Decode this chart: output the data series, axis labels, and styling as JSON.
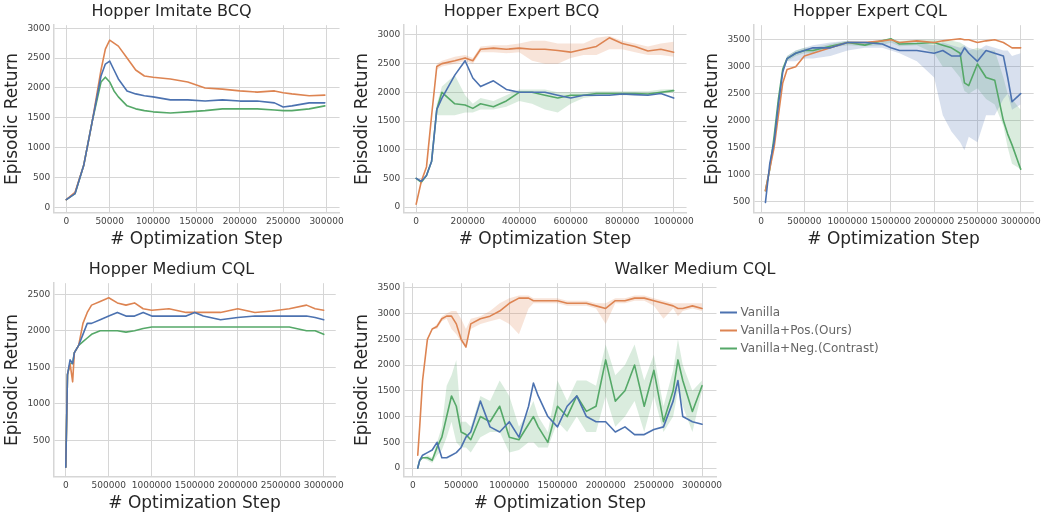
{
  "chart_data": [
    {
      "type": "line",
      "title": "Hopper Imitate BCQ",
      "xlabel": "# Optimization Step",
      "ylabel": "Episodic Return",
      "grid": true,
      "xlim": [
        -15000,
        315000
      ],
      "xticks": [
        0,
        50000,
        100000,
        150000,
        200000,
        250000,
        300000
      ],
      "ylim": [
        -90,
        3050
      ],
      "yticks": [
        0,
        500,
        1000,
        1500,
        2000,
        2500,
        3000
      ],
      "x": [
        0,
        10000,
        20000,
        30000,
        40000,
        45000,
        50000,
        55000,
        60000,
        70000,
        80000,
        90000,
        100000,
        120000,
        140000,
        160000,
        180000,
        200000,
        220000,
        240000,
        250000,
        260000,
        280000,
        298000
      ],
      "series": [
        {
          "color": "#4c72b0",
          "values": [
            130,
            230,
            700,
            1450,
            2200,
            2400,
            2450,
            2300,
            2150,
            1950,
            1900,
            1870,
            1850,
            1800,
            1800,
            1780,
            1800,
            1780,
            1780,
            1750,
            1680,
            1700,
            1750,
            1750
          ]
        },
        {
          "color": "#dd8452",
          "values": [
            130,
            250,
            700,
            1450,
            2300,
            2650,
            2800,
            2750,
            2700,
            2500,
            2300,
            2200,
            2180,
            2150,
            2100,
            2000,
            1980,
            1950,
            1930,
            1950,
            1920,
            1900,
            1870,
            1880
          ]
        },
        {
          "color": "#55a868",
          "values": [
            130,
            230,
            700,
            1450,
            2100,
            2180,
            2100,
            1950,
            1850,
            1700,
            1650,
            1620,
            1600,
            1580,
            1600,
            1620,
            1650,
            1650,
            1650,
            1630,
            1620,
            1620,
            1650,
            1700
          ]
        }
      ]
    },
    {
      "type": "line",
      "title": "Hopper Expert BCQ",
      "xlabel": "# Optimization Step",
      "ylabel": "Episodic Return",
      "grid": true,
      "xlim": [
        -50000,
        1050000
      ],
      "xticks": [
        0,
        200000,
        400000,
        600000,
        800000,
        1000000
      ],
      "ylim": [
        -100,
        3170
      ],
      "yticks": [
        0,
        500,
        1000,
        1500,
        2000,
        2500,
        3000
      ],
      "x": [
        0,
        20000,
        40000,
        60000,
        80000,
        100000,
        150000,
        190000,
        220000,
        250000,
        300000,
        350000,
        400000,
        450000,
        500000,
        550000,
        600000,
        650000,
        700000,
        750000,
        800000,
        850000,
        900000,
        950000,
        1000000
      ],
      "series": [
        {
          "color": "#4c72b0",
          "values": [
            500,
            450,
            550,
            800,
            1700,
            1900,
            2300,
            2550,
            2250,
            2100,
            2200,
            2050,
            2000,
            2000,
            2000,
            1950,
            1900,
            1950,
            1950,
            1950,
            1970,
            1960,
            1950,
            1980,
            1900
          ]
        },
        {
          "color": "#dd8452",
          "values": [
            50,
            450,
            700,
            1600,
            2450,
            2500,
            2550,
            2600,
            2550,
            2750,
            2770,
            2750,
            2770,
            2750,
            2750,
            2730,
            2700,
            2750,
            2800,
            2950,
            2850,
            2800,
            2720,
            2750,
            2700
          ],
          "lower": [
            50,
            450,
            700,
            1600,
            2400,
            2450,
            2500,
            2550,
            2500,
            2700,
            2700,
            2680,
            2700,
            2550,
            2500,
            2500,
            2600,
            2650,
            2650,
            2750,
            2750,
            2700,
            2650,
            2650,
            2620
          ],
          "upper": [
            50,
            450,
            700,
            1600,
            2500,
            2550,
            2620,
            2650,
            2600,
            2800,
            2820,
            2820,
            2850,
            2900,
            2900,
            2850,
            2850,
            2850,
            2950,
            2980,
            2900,
            2850,
            2800,
            2850,
            2880
          ]
        },
        {
          "color": "#55a868",
          "values": [
            500,
            430,
            550,
            800,
            1700,
            2000,
            1800,
            1780,
            1720,
            1800,
            1750,
            1850,
            2000,
            2000,
            1950,
            1900,
            1950,
            1950,
            1980,
            1980,
            1980,
            1980,
            1970,
            2000,
            2030
          ],
          "lower": [
            500,
            430,
            550,
            800,
            1600,
            1600,
            1600,
            1650,
            1650,
            1700,
            1700,
            1750,
            1850,
            1800,
            1700,
            1650,
            1800,
            1900,
            1930,
            1950,
            1950,
            1950,
            1950,
            1970,
            2000
          ],
          "upper": [
            500,
            430,
            550,
            800,
            1800,
            2100,
            2300,
            1950,
            1800,
            1900,
            1850,
            1950,
            2050,
            2050,
            2050,
            2000,
            2000,
            2000,
            2020,
            2020,
            2020,
            2020,
            2020,
            2050,
            2060
          ]
        }
      ]
    },
    {
      "type": "line",
      "title": "Hopper Expert CQL",
      "xlabel": "# Optimization Step",
      "ylabel": "Episodic Return",
      "grid": true,
      "xlim": [
        -90000,
        3150000
      ],
      "xticks": [
        0,
        500000,
        1000000,
        1500000,
        2000000,
        2500000,
        3000000
      ],
      "ylim": [
        290,
        3770
      ],
      "yticks": [
        500,
        1000,
        1500,
        2000,
        2500,
        3000,
        3500
      ],
      "x": [
        50000,
        100000,
        150000,
        200000,
        250000,
        300000,
        400000,
        500000,
        600000,
        800000,
        1000000,
        1200000,
        1400000,
        1500000,
        1600000,
        1800000,
        2000000,
        2100000,
        2200000,
        2300000,
        2350000,
        2400000,
        2500000,
        2600000,
        2700000,
        2800000,
        2850000,
        2900000,
        3000000
      ],
      "series": [
        {
          "color": "#4c72b0",
          "values": [
            480,
            1200,
            1600,
            2300,
            2900,
            3150,
            3250,
            3300,
            3350,
            3350,
            3450,
            3450,
            3420,
            3350,
            3300,
            3300,
            3250,
            3300,
            3200,
            3200,
            3350,
            3250,
            3100,
            3300,
            3250,
            3200,
            2800,
            2350,
            2500
          ],
          "lower": [
            480,
            1200,
            1600,
            2300,
            2900,
            3100,
            3100,
            3150,
            3150,
            3200,
            3300,
            3350,
            3350,
            3300,
            3250,
            3100,
            2800,
            2100,
            1800,
            1600,
            1450,
            1700,
            1600,
            2100,
            2100,
            2400,
            2500,
            2200,
            2300
          ],
          "upper": [
            480,
            1200,
            1600,
            2300,
            2950,
            3200,
            3300,
            3350,
            3400,
            3450,
            3480,
            3480,
            3480,
            3480,
            3450,
            3450,
            3400,
            3450,
            3400,
            3350,
            3400,
            3350,
            3300,
            3400,
            3350,
            3300,
            3300,
            3200,
            3250
          ]
        },
        {
          "color": "#dd8452",
          "values": [
            700,
            1100,
            1500,
            2100,
            2700,
            2950,
            3000,
            3200,
            3250,
            3350,
            3450,
            3450,
            3480,
            3500,
            3450,
            3480,
            3450,
            3480,
            3500,
            3520,
            3500,
            3500,
            3450,
            3480,
            3500,
            3450,
            3400,
            3350,
            3350
          ]
        },
        {
          "color": "#55a868",
          "values": [
            700,
            1100,
            1700,
            2400,
            2950,
            3150,
            3250,
            3300,
            3300,
            3380,
            3450,
            3400,
            3480,
            3520,
            3420,
            3430,
            3450,
            3400,
            3350,
            3250,
            2700,
            2650,
            3050,
            2800,
            2750,
            2000,
            1750,
            1550,
            1100
          ],
          "lower": [
            700,
            1100,
            1700,
            2400,
            2900,
            3100,
            3200,
            3250,
            3250,
            3350,
            3400,
            3380,
            3400,
            3450,
            3380,
            3400,
            3250,
            3000,
            3000,
            2800,
            2550,
            2500,
            2600,
            2400,
            2300,
            1900,
            1500,
            1200,
            1100
          ],
          "upper": [
            700,
            1100,
            1700,
            2400,
            3000,
            3200,
            3300,
            3350,
            3350,
            3420,
            3480,
            3450,
            3500,
            3520,
            3480,
            3500,
            3500,
            3480,
            3480,
            3450,
            3400,
            3300,
            3350,
            3300,
            3300,
            2800,
            2500,
            2400,
            2200
          ]
        }
      ]
    },
    {
      "type": "line",
      "title": "Hopper Medium CQL",
      "xlabel": "# Optimization Step",
      "ylabel": "Episodic Return",
      "grid": true,
      "xlim": [
        -145000,
        3140000
      ],
      "xticks": [
        0,
        500000,
        1000000,
        1500000,
        2000000,
        2500000,
        3000000
      ],
      "ylim": [
        0,
        2650
      ],
      "yticks": [
        500,
        1000,
        1500,
        2000,
        2500
      ],
      "x": [
        0,
        20000,
        50000,
        80000,
        100000,
        150000,
        200000,
        250000,
        300000,
        400000,
        500000,
        600000,
        700000,
        800000,
        900000,
        1000000,
        1200000,
        1400000,
        1500000,
        1600000,
        1800000,
        2000000,
        2200000,
        2400000,
        2600000,
        2800000,
        2900000,
        3000000
      ],
      "series": [
        {
          "color": "#4c72b0",
          "values": [
            130,
            1400,
            1600,
            1550,
            1700,
            1800,
            1950,
            2100,
            2100,
            2150,
            2200,
            2250,
            2200,
            2200,
            2250,
            2200,
            2200,
            2200,
            2250,
            2200,
            2150,
            2180,
            2200,
            2200,
            2200,
            2200,
            2180,
            2150
          ]
        },
        {
          "color": "#dd8452",
          "values": [
            130,
            1400,
            1550,
            1300,
            1700,
            1800,
            2100,
            2250,
            2350,
            2400,
            2450,
            2380,
            2350,
            2380,
            2300,
            2280,
            2300,
            2250,
            2250,
            2250,
            2250,
            2300,
            2250,
            2270,
            2300,
            2350,
            2300,
            2280
          ]
        },
        {
          "color": "#55a868",
          "values": [
            130,
            1400,
            1550,
            1550,
            1700,
            1800,
            1850,
            1900,
            1950,
            2000,
            2000,
            2000,
            1980,
            2000,
            2030,
            2050,
            2050,
            2050,
            2050,
            2050,
            2050,
            2050,
            2050,
            2050,
            2050,
            2000,
            2000,
            1950
          ]
        }
      ]
    },
    {
      "type": "line",
      "title": "Walker Medium CQL",
      "xlabel": "# Optimization Step",
      "ylabel": "Episodic Return",
      "grid": true,
      "legend": "right",
      "xlim": [
        -100000,
        3150000
      ],
      "xticks": [
        0,
        500000,
        1000000,
        1500000,
        2000000,
        2500000,
        3000000
      ],
      "ylim": [
        -170,
        3590
      ],
      "yticks": [
        0,
        500,
        1000,
        1500,
        2000,
        2500,
        3000,
        3500
      ],
      "x": [
        50000,
        70000,
        100000,
        150000,
        200000,
        250000,
        300000,
        350000,
        400000,
        450000,
        500000,
        550000,
        600000,
        700000,
        800000,
        900000,
        1000000,
        1100000,
        1200000,
        1250000,
        1300000,
        1400000,
        1500000,
        1600000,
        1700000,
        1800000,
        1900000,
        2000000,
        2100000,
        2200000,
        2300000,
        2400000,
        2500000,
        2600000,
        2700000,
        2750000,
        2800000,
        2900000,
        3000000
      ],
      "series": [
        {
          "name": "Vanilla",
          "color": "#4c72b0",
          "values": [
            0,
            150,
            250,
            300,
            350,
            500,
            200,
            200,
            250,
            300,
            400,
            600,
            700,
            1300,
            800,
            700,
            900,
            600,
            1200,
            1650,
            1400,
            1000,
            800,
            1200,
            1400,
            1000,
            900,
            900,
            700,
            800,
            650,
            650,
            750,
            800,
            1300,
            1700,
            1000,
            900,
            850
          ]
        },
        {
          "name": "Vanilla+Pos.(Ours)",
          "color": "#dd8452",
          "values": [
            250,
            800,
            1700,
            2500,
            2700,
            2750,
            2900,
            2950,
            2950,
            2800,
            2500,
            2350,
            2800,
            2900,
            2950,
            3050,
            3200,
            3300,
            3300,
            3250,
            3250,
            3250,
            3250,
            3200,
            3200,
            3200,
            3150,
            3100,
            3250,
            3250,
            3300,
            3300,
            3250,
            3200,
            3150,
            3100,
            3100,
            3150,
            3100
          ],
          "lower": [
            250,
            800,
            1700,
            2500,
            2700,
            2700,
            2850,
            2900,
            2700,
            2600,
            2450,
            2350,
            2700,
            2800,
            2850,
            2900,
            2800,
            2600,
            3100,
            3200,
            3200,
            3200,
            3200,
            3150,
            3150,
            3150,
            3100,
            2800,
            3200,
            3200,
            3250,
            3250,
            3150,
            2900,
            3100,
            2950,
            3050,
            3100,
            3050
          ],
          "upper": [
            250,
            800,
            1700,
            2500,
            2700,
            2800,
            2950,
            3000,
            3050,
            3050,
            2900,
            2700,
            2900,
            2950,
            3050,
            3200,
            3300,
            3350,
            3350,
            3300,
            3300,
            3300,
            3300,
            3250,
            3250,
            3250,
            3200,
            3200,
            3300,
            3300,
            3350,
            3350,
            3300,
            3250,
            3200,
            3200,
            3200,
            3200,
            3200
          ]
        },
        {
          "name": "Vanilla+Neg.(Contrast)",
          "color": "#55a868",
          "values": [
            0,
            150,
            200,
            200,
            150,
            400,
            600,
            1000,
            1400,
            1200,
            700,
            650,
            550,
            1000,
            900,
            1200,
            600,
            550,
            850,
            1000,
            800,
            500,
            1200,
            1000,
            1400,
            1100,
            1200,
            2100,
            1300,
            1500,
            2000,
            1200,
            1900,
            900,
            1500,
            2100,
            1700,
            1100,
            1600
          ],
          "lower": [
            0,
            150,
            200,
            150,
            100,
            250,
            350,
            600,
            900,
            500,
            400,
            400,
            300,
            600,
            700,
            700,
            300,
            350,
            500,
            500,
            400,
            400,
            900,
            700,
            1000,
            700,
            700,
            1400,
            800,
            1000,
            1300,
            700,
            1400,
            700,
            1000,
            1500,
            1200,
            700,
            1500
          ],
          "upper": [
            0,
            150,
            200,
            250,
            200,
            500,
            800,
            1600,
            1800,
            2100,
            900,
            900,
            800,
            1400,
            1300,
            1700,
            1400,
            800,
            1100,
            1300,
            1000,
            700,
            1700,
            1300,
            1700,
            1700,
            1600,
            2400,
            1800,
            2000,
            2400,
            1700,
            2200,
            1200,
            1900,
            2500,
            2000,
            1500,
            1700
          ]
        }
      ]
    }
  ]
}
